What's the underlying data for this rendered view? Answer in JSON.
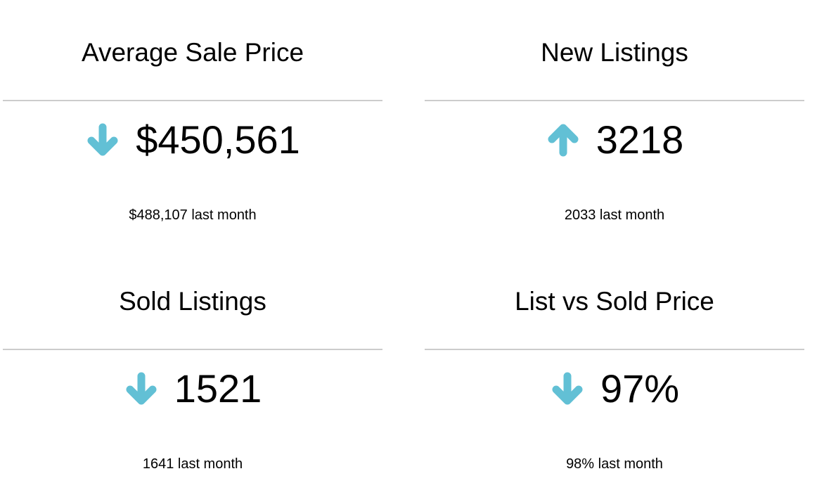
{
  "accent_color": "#62c0d5",
  "cards": [
    {
      "title": "Average Sale Price",
      "value": "$450,561",
      "trend": "down",
      "trend_icon": "arrow-down-icon",
      "previous": "$488,107 last month"
    },
    {
      "title": "New Listings",
      "value": "3218",
      "trend": "up",
      "trend_icon": "arrow-up-icon",
      "previous": "2033 last month"
    },
    {
      "title": "Sold Listings",
      "value": "1521",
      "trend": "down",
      "trend_icon": "arrow-down-icon",
      "previous": "1641 last month"
    },
    {
      "title": "List vs Sold Price",
      "value": "97%",
      "trend": "down",
      "trend_icon": "arrow-down-icon",
      "previous": "98% last month"
    }
  ]
}
